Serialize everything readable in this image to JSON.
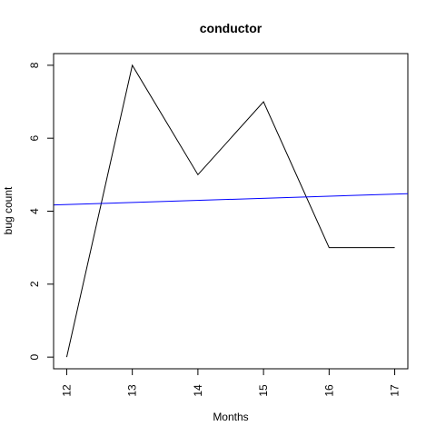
{
  "chart_data": {
    "type": "line",
    "title": "conductor",
    "xlabel": "Months",
    "ylabel": "bug count",
    "xlim": [
      11.8,
      17.2
    ],
    "ylim": [
      -0.32,
      8.32
    ],
    "x_ticks": [
      12,
      13,
      14,
      15,
      16,
      17
    ],
    "y_ticks": [
      0,
      2,
      4,
      6,
      8
    ],
    "grid": false,
    "legend": "none",
    "series": [
      {
        "kind": "line",
        "color": "#000000",
        "x": [
          12,
          13,
          14,
          15,
          16,
          17
        ],
        "y": [
          0,
          8,
          5,
          7,
          3,
          3
        ]
      },
      {
        "kind": "trend",
        "color": "#0000ff",
        "x": [
          11.8,
          17.2
        ],
        "y": [
          4.17,
          4.48
        ]
      }
    ]
  }
}
